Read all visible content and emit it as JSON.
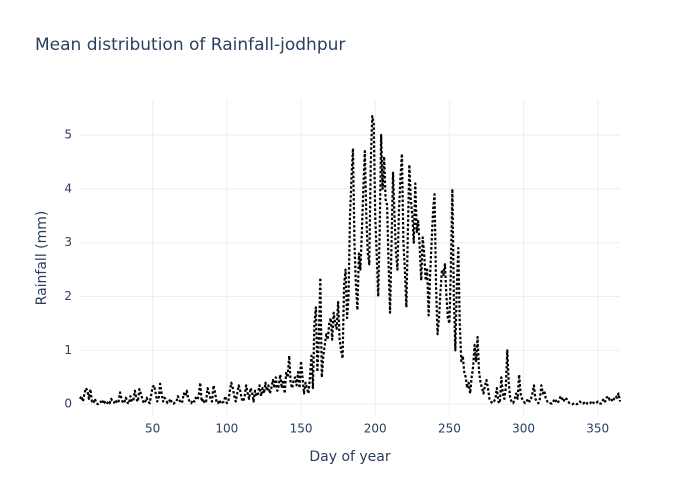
{
  "chart_data": {
    "type": "line",
    "title": "Mean distribution of Rainfall-jodhpur",
    "x_label": "Day of year",
    "y_label": "Rainfall (mm)",
    "x": [
      1,
      2,
      3,
      4,
      5,
      6,
      7,
      8,
      9,
      10,
      11,
      12,
      13,
      14,
      15,
      16,
      17,
      18,
      19,
      20,
      21,
      22,
      23,
      24,
      25,
      26,
      27,
      28,
      29,
      30,
      31,
      32,
      33,
      34,
      35,
      36,
      37,
      38,
      39,
      40,
      41,
      42,
      43,
      44,
      45,
      46,
      47,
      48,
      49,
      50,
      51,
      52,
      53,
      54,
      55,
      56,
      57,
      58,
      59,
      60,
      61,
      62,
      63,
      64,
      65,
      66,
      67,
      68,
      69,
      70,
      71,
      72,
      73,
      74,
      75,
      76,
      77,
      78,
      79,
      80,
      81,
      82,
      83,
      84,
      85,
      86,
      87,
      88,
      89,
      90,
      91,
      92,
      93,
      94,
      95,
      96,
      97,
      98,
      99,
      100,
      101,
      102,
      103,
      104,
      105,
      106,
      107,
      108,
      109,
      110,
      111,
      112,
      113,
      114,
      115,
      116,
      117,
      118,
      119,
      120,
      121,
      122,
      123,
      124,
      125,
      126,
      127,
      128,
      129,
      130,
      131,
      132,
      133,
      134,
      135,
      136,
      137,
      138,
      139,
      140,
      141,
      142,
      143,
      144,
      145,
      146,
      147,
      148,
      149,
      150,
      151,
      152,
      153,
      154,
      155,
      156,
      157,
      158,
      159,
      160,
      161,
      162,
      163,
      164,
      165,
      166,
      167,
      168,
      169,
      170,
      171,
      172,
      173,
      174,
      175,
      176,
      177,
      178,
      179,
      180,
      181,
      182,
      183,
      184,
      185,
      186,
      187,
      188,
      189,
      190,
      191,
      192,
      193,
      194,
      195,
      196,
      197,
      198,
      199,
      200,
      201,
      202,
      203,
      204,
      205,
      206,
      207,
      208,
      209,
      210,
      211,
      212,
      213,
      214,
      215,
      216,
      217,
      218,
      219,
      220,
      221,
      222,
      223,
      224,
      225,
      226,
      227,
      228,
      229,
      230,
      231,
      232,
      233,
      234,
      235,
      236,
      237,
      238,
      239,
      240,
      241,
      242,
      243,
      244,
      245,
      246,
      247,
      248,
      249,
      250,
      251,
      252,
      253,
      254,
      255,
      256,
      257,
      258,
      259,
      260,
      261,
      262,
      263,
      264,
      265,
      266,
      267,
      268,
      269,
      270,
      271,
      272,
      273,
      274,
      275,
      276,
      277,
      278,
      279,
      280,
      281,
      282,
      283,
      284,
      285,
      286,
      287,
      288,
      289,
      290,
      291,
      292,
      293,
      294,
      295,
      296,
      297,
      298,
      299,
      300,
      301,
      302,
      303,
      304,
      305,
      306,
      307,
      308,
      309,
      310,
      311,
      312,
      313,
      314,
      315,
      316,
      317,
      318,
      319,
      320,
      321,
      322,
      323,
      324,
      325,
      326,
      327,
      328,
      329,
      330,
      331,
      332,
      333,
      334,
      335,
      336,
      337,
      338,
      339,
      340,
      341,
      342,
      343,
      344,
      345,
      346,
      347,
      348,
      349,
      350,
      351,
      352,
      353,
      354,
      355,
      356,
      357,
      358,
      359,
      360,
      361,
      362,
      363,
      364,
      365
    ],
    "series": [
      {
        "color": "#000000",
        "values": [
          0.1,
          0.15,
          0.05,
          0.2,
          0.3,
          0.25,
          0.1,
          0.28,
          0.05,
          0.02,
          0.1,
          0.03,
          0.0,
          0.02,
          0.05,
          0.01,
          0.08,
          0.02,
          0.0,
          0.05,
          0.02,
          0.1,
          0.05,
          0.03,
          0.08,
          0.02,
          0.05,
          0.22,
          0.1,
          0.02,
          0.05,
          0.12,
          0.03,
          0.01,
          0.15,
          0.05,
          0.08,
          0.25,
          0.1,
          0.05,
          0.28,
          0.2,
          0.1,
          0.02,
          0.05,
          0.12,
          0.05,
          0.02,
          0.18,
          0.32,
          0.35,
          0.2,
          0.05,
          0.1,
          0.38,
          0.2,
          0.05,
          0.12,
          0.08,
          0.02,
          0.05,
          0.1,
          0.02,
          0.01,
          0.03,
          0.05,
          0.15,
          0.08,
          0.02,
          0.05,
          0.2,
          0.15,
          0.25,
          0.1,
          0.05,
          0.02,
          0.08,
          0.05,
          0.12,
          0.08,
          0.15,
          0.4,
          0.05,
          0.1,
          0.02,
          0.05,
          0.3,
          0.2,
          0.1,
          0.05,
          0.35,
          0.22,
          0.05,
          0.02,
          0.08,
          0.01,
          0.03,
          0.05,
          0.15,
          0.02,
          0.05,
          0.25,
          0.4,
          0.3,
          0.15,
          0.05,
          0.2,
          0.35,
          0.25,
          0.1,
          0.05,
          0.15,
          0.35,
          0.2,
          0.1,
          0.3,
          0.22,
          0.05,
          0.25,
          0.15,
          0.2,
          0.35,
          0.15,
          0.3,
          0.2,
          0.4,
          0.25,
          0.35,
          0.2,
          0.3,
          0.45,
          0.3,
          0.5,
          0.25,
          0.35,
          0.55,
          0.3,
          0.45,
          0.2,
          0.6,
          0.5,
          0.9,
          0.4,
          0.3,
          0.45,
          0.5,
          0.35,
          0.6,
          0.3,
          0.8,
          0.5,
          0.2,
          0.4,
          0.3,
          0.2,
          0.5,
          0.9,
          0.3,
          1.5,
          1.8,
          0.6,
          1.2,
          2.35,
          0.5,
          0.9,
          1.1,
          1.3,
          1.2,
          1.5,
          1.6,
          1.2,
          1.7,
          1.5,
          1.4,
          1.9,
          1.2,
          1.0,
          0.85,
          2.2,
          2.5,
          1.6,
          2.0,
          3.5,
          4.2,
          4.75,
          3.0,
          2.2,
          1.75,
          2.8,
          2.5,
          3.2,
          4.0,
          4.7,
          3.5,
          2.8,
          2.6,
          4.5,
          5.35,
          5.2,
          3.5,
          2.8,
          2.0,
          3.2,
          5.0,
          4.0,
          4.6,
          3.8,
          3.7,
          2.6,
          1.7,
          3.0,
          4.3,
          3.5,
          2.8,
          2.5,
          3.6,
          4.2,
          4.65,
          3.0,
          2.5,
          1.8,
          3.2,
          4.45,
          3.8,
          3.5,
          3.0,
          4.1,
          3.2,
          3.4,
          2.9,
          2.3,
          3.1,
          2.8,
          2.3,
          2.5,
          1.65,
          2.4,
          3.0,
          3.6,
          3.9,
          2.2,
          1.3,
          1.6,
          2.1,
          2.5,
          2.4,
          2.6,
          2.0,
          1.6,
          1.5,
          2.5,
          4.0,
          2.0,
          1.0,
          2.2,
          2.9,
          1.5,
          0.8,
          0.9,
          0.6,
          0.5,
          0.3,
          0.4,
          0.2,
          0.5,
          0.7,
          1.1,
          0.8,
          1.25,
          0.6,
          0.4,
          0.3,
          0.2,
          0.35,
          0.45,
          0.3,
          0.1,
          0.05,
          0.02,
          0.05,
          0.1,
          0.3,
          0.05,
          0.02,
          0.5,
          0.2,
          0.1,
          0.3,
          1.0,
          0.4,
          0.1,
          0.05,
          0.02,
          0.1,
          0.2,
          0.1,
          0.55,
          0.2,
          0.1,
          0.05,
          0.02,
          0.05,
          0.1,
          0.05,
          0.1,
          0.2,
          0.35,
          0.1,
          0.05,
          0.02,
          0.1,
          0.35,
          0.2,
          0.25,
          0.1,
          0.05,
          0.05,
          0.02,
          0.01,
          0.05,
          0.1,
          0.05,
          0.02,
          0.08,
          0.15,
          0.1,
          0.05,
          0.12,
          0.1,
          0.05,
          0.02,
          0.01,
          0.0,
          0.02,
          0.01,
          0.0,
          0.02,
          0.05,
          0.02,
          0.01,
          0.03,
          0.05,
          0.01,
          0.0,
          0.02,
          0.06,
          0.03,
          0.01,
          0.02,
          0.05,
          0.02,
          0.01,
          0.05,
          0.1,
          0.05,
          0.12,
          0.15,
          0.08,
          0.1,
          0.05,
          0.1,
          0.15,
          0.12,
          0.2,
          0.05
        ]
      }
    ],
    "xlim": [
      1,
      365
    ],
    "ylim": [
      -0.2,
      5.65
    ],
    "xticks": [
      50,
      100,
      150,
      200,
      250,
      300,
      350
    ],
    "yticks": [
      0,
      1,
      2,
      3,
      4,
      5
    ],
    "grid": true
  }
}
